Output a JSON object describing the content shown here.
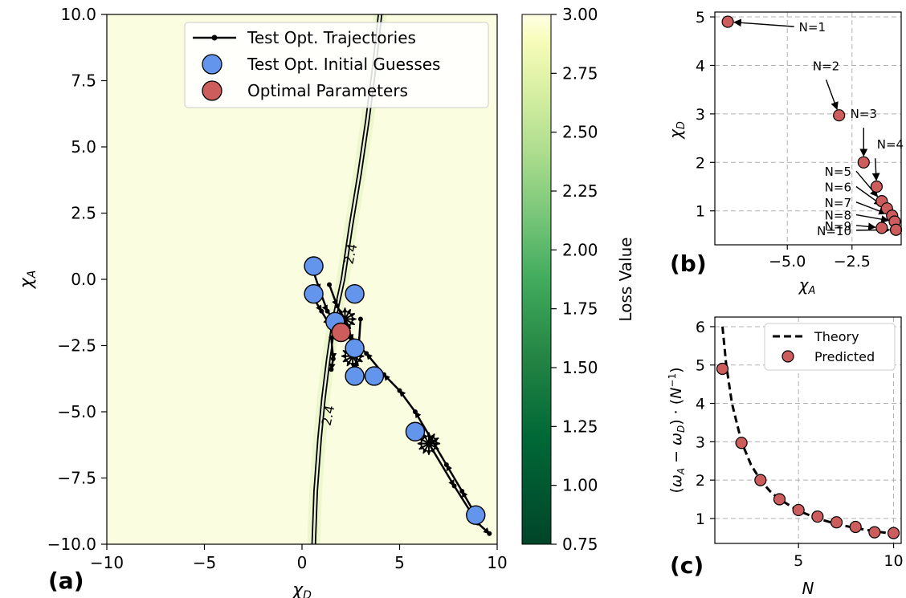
{
  "chart_data": [
    {
      "type": "heatmap",
      "panel_label": "(a)",
      "xlabel": "χD",
      "ylabel": "χA",
      "xlim": [
        -10,
        10
      ],
      "ylim": [
        -10,
        10
      ],
      "x_ticks": [
        -10,
        -5,
        0,
        5,
        10
      ],
      "y_ticks": [
        -10.0,
        -7.5,
        -5.0,
        -2.5,
        0.0,
        2.5,
        5.0,
        7.5,
        10.0
      ],
      "x_tick_labels": [
        "−10",
        "−5",
        "0",
        "5",
        "10"
      ],
      "y_tick_labels": [
        "−10.0",
        "−7.5",
        "−5.0",
        "−2.5",
        "0.0",
        "2.5",
        "5.0",
        "7.5",
        "10.0"
      ],
      "colorbar": {
        "label": "Loss Value",
        "range": [
          0.75,
          3.0
        ],
        "ticks": [
          0.75,
          1.0,
          1.25,
          1.5,
          1.75,
          2.0,
          2.25,
          2.5,
          2.75,
          3.0
        ],
        "tick_labels": [
          "0.75",
          "1.00",
          "1.25",
          "1.50",
          "1.75",
          "2.00",
          "2.25",
          "2.50",
          "2.75",
          "3.00"
        ],
        "colormap": "YlGn_r"
      },
      "contour": {
        "level_label": "2.4",
        "curve": [
          [
            0.6,
            -10
          ],
          [
            0.7,
            -8
          ],
          [
            0.9,
            -6
          ],
          [
            1.1,
            -4.5
          ],
          [
            1.35,
            -3
          ],
          [
            1.65,
            -1.5
          ],
          [
            2.1,
            0
          ],
          [
            2.5,
            2
          ],
          [
            2.95,
            4
          ],
          [
            3.35,
            6
          ],
          [
            3.7,
            8
          ],
          [
            4.0,
            10
          ]
        ]
      },
      "series": [
        {
          "name": "Test Opt. Trajectories",
          "paths": [
            [
              [
                0.5,
                -0.6
              ],
              [
                1.0,
                -1.2
              ],
              [
                1.4,
                -1.7
              ],
              [
                1.9,
                -2.0
              ]
            ],
            [
              [
                8.9,
                -8.9
              ],
              [
                8.2,
                -8.0
              ],
              [
                7.4,
                -7.0
              ],
              [
                6.6,
                -6.0
              ],
              [
                5.8,
                -5.0
              ],
              [
                5.0,
                -4.2
              ],
              [
                4.2,
                -3.6
              ],
              [
                3.3,
                -2.8
              ],
              [
                2.5,
                -2.2
              ]
            ],
            [
              [
                6.5,
                -6.2
              ],
              [
                7.8,
                -7.8
              ],
              [
                9.0,
                -9.2
              ],
              [
                9.6,
                -9.6
              ]
            ],
            [
              [
                1.4,
                -0.2
              ],
              [
                1.8,
                -1.0
              ],
              [
                2.2,
                -1.6
              ],
              [
                2.6,
                -2.3
              ]
            ],
            [
              [
                3.0,
                -1.5
              ],
              [
                2.9,
                -2.6
              ],
              [
                2.7,
                -3.4
              ]
            ],
            [
              [
                1.5,
                -2.2
              ],
              [
                1.6,
                -3.0
              ],
              [
                1.5,
                -3.4
              ]
            ],
            [
              [
                0.5,
                0.5
              ],
              [
                0.9,
                -0.4
              ],
              [
                1.3,
                -1.2
              ],
              [
                1.7,
                -1.6
              ]
            ]
          ]
        },
        {
          "name": "Test Opt. Initial Guesses",
          "points": [
            [
              0.6,
              0.5
            ],
            [
              0.6,
              -0.55
            ],
            [
              2.7,
              -0.55
            ],
            [
              1.7,
              -1.6
            ],
            [
              2.7,
              -2.6
            ],
            [
              2.7,
              -3.65
            ],
            [
              3.7,
              -3.65
            ],
            [
              5.8,
              -5.75
            ],
            [
              8.9,
              -8.9
            ]
          ]
        },
        {
          "name": "Optimal Parameters",
          "points": [
            [
              2.0,
              -2.0
            ]
          ]
        }
      ],
      "colors": {
        "trajectory": "#000000",
        "initial_guess": "#6495ed",
        "optimal": "#cd5c5c"
      },
      "legend_placement": "top-center"
    },
    {
      "type": "scatter",
      "panel_label": "(b)",
      "xlabel": "χA",
      "ylabel": "χD",
      "xlim": [
        -7.8,
        -0.6
      ],
      "ylim": [
        0.3,
        5.1
      ],
      "x_ticks": [
        -5.0,
        -2.5
      ],
      "y_ticks": [
        1,
        2,
        3,
        4,
        5
      ],
      "x_tick_labels": [
        "−5.0",
        "−2.5"
      ],
      "y_tick_labels": [
        "1",
        "2",
        "3",
        "4",
        "5"
      ],
      "grid": true,
      "points": [
        [
          -7.3,
          4.9
        ],
        [
          -3.0,
          2.97
        ],
        [
          -2.05,
          2.0
        ],
        [
          -1.55,
          1.5
        ],
        [
          -1.35,
          1.2
        ],
        [
          -1.15,
          1.05
        ],
        [
          -0.95,
          0.9
        ],
        [
          -0.85,
          0.78
        ],
        [
          -1.35,
          0.65
        ],
        [
          -0.8,
          0.61
        ]
      ],
      "annotations": [
        {
          "text": "N=1",
          "at": [
            -7.3,
            4.9
          ],
          "arrow_from": [
            -4.8,
            4.8
          ]
        },
        {
          "text": "N=2",
          "at": [
            -3.0,
            2.97
          ],
          "arrow_from": [
            -3.5,
            3.77
          ]
        },
        {
          "text": "N=3",
          "at": [
            -2.05,
            2.0
          ],
          "arrow_from": [
            -2.05,
            2.78
          ]
        },
        {
          "text": "N=4",
          "at": [
            -1.55,
            1.5
          ],
          "arrow_from": [
            -1.6,
            2.15
          ]
        },
        {
          "text": "N=5",
          "at": [
            -1.35,
            1.2
          ],
          "arrow_from": [
            -2.4,
            1.82
          ]
        },
        {
          "text": "N=6",
          "at": [
            -1.15,
            1.05
          ],
          "arrow_from": [
            -2.4,
            1.5
          ]
        },
        {
          "text": "N=7",
          "at": [
            -0.95,
            0.9
          ],
          "arrow_from": [
            -2.4,
            1.18
          ]
        },
        {
          "text": "N=8",
          "at": [
            -0.85,
            0.78
          ],
          "arrow_from": [
            -2.4,
            0.92
          ]
        },
        {
          "text": "N=9",
          "at": [
            -1.35,
            0.65
          ],
          "arrow_from": [
            -2.4,
            0.7
          ]
        },
        {
          "text": "N=10",
          "at": [
            -0.8,
            0.61
          ],
          "arrow_from": [
            -2.4,
            0.6
          ]
        }
      ]
    },
    {
      "type": "line",
      "panel_label": "(c)",
      "xlabel": "N",
      "ylabel": "(ωA − ωD) · (N⁻¹)",
      "xlim": [
        0.6,
        10.4
      ],
      "ylim": [
        0.35,
        6.25
      ],
      "x_ticks": [
        5,
        10
      ],
      "y_ticks": [
        1,
        2,
        3,
        4,
        5,
        6
      ],
      "x_tick_labels": [
        "5",
        "10"
      ],
      "y_tick_labels": [
        "1",
        "2",
        "3",
        "4",
        "5",
        "6"
      ],
      "grid": true,
      "legend_placement": "top-right",
      "series": [
        {
          "name": "Theory",
          "style": "dashed",
          "x": [
            1,
            1.2,
            1.5,
            2,
            2.5,
            3,
            3.5,
            4,
            5,
            6,
            7,
            8,
            9,
            10
          ],
          "values": [
            6.0,
            5.0,
            4.0,
            3.0,
            2.4,
            2.0,
            1.71,
            1.5,
            1.2,
            1.0,
            0.857,
            0.75,
            0.667,
            0.6
          ]
        },
        {
          "name": "Predicted",
          "style": "markers",
          "x": [
            1,
            2,
            3,
            4,
            5,
            6,
            7,
            8,
            9,
            10
          ],
          "values": [
            4.9,
            2.97,
            2.0,
            1.5,
            1.22,
            1.05,
            0.9,
            0.78,
            0.64,
            0.62
          ]
        }
      ]
    }
  ]
}
